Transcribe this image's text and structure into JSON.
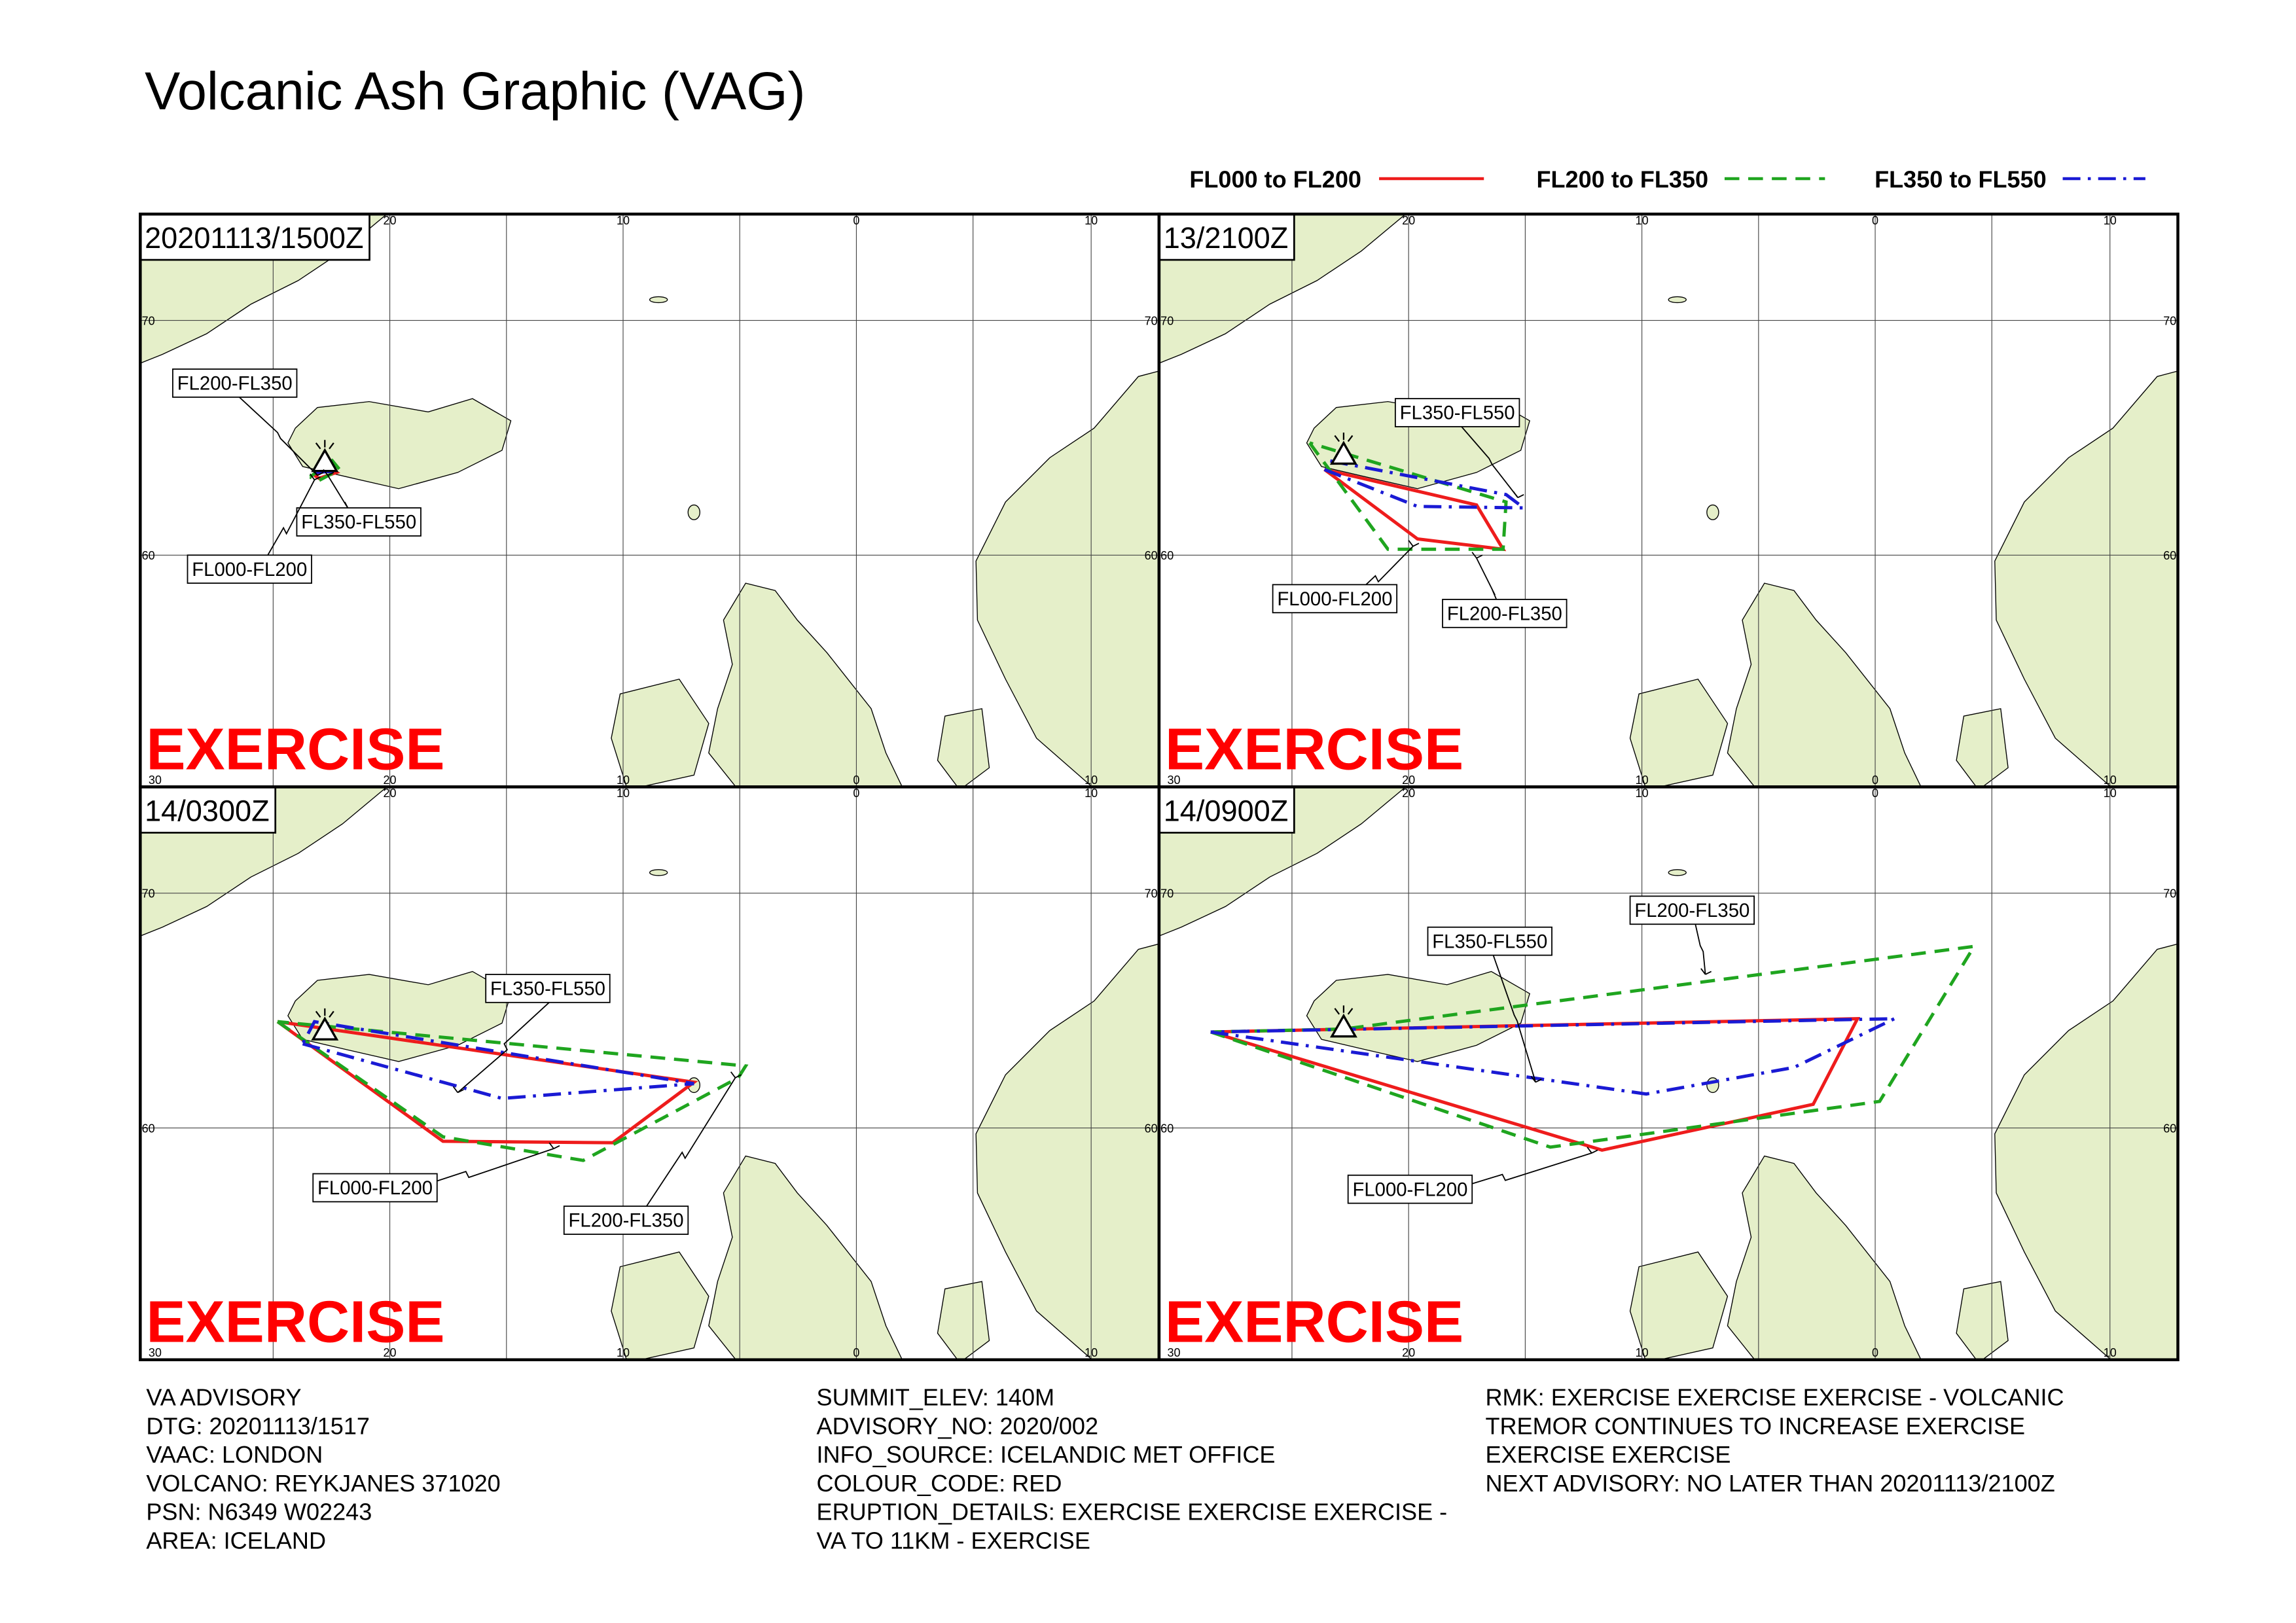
{
  "title": "Volcanic Ash Graphic (VAG)",
  "legend": [
    {
      "label": "FL000 to FL200",
      "color": "#ee1c1c",
      "dash": "solid"
    },
    {
      "label": "FL200 to FL350",
      "color": "#1fa51f",
      "dash": "dashed"
    },
    {
      "label": "FL350 to FL550",
      "color": "#1a1ad4",
      "dash": "dashdot"
    }
  ],
  "graticule": {
    "top": [
      "20",
      "10",
      "0",
      "10"
    ],
    "bottom": [
      "30",
      "20",
      "10",
      "0",
      "10"
    ],
    "side": [
      "70",
      "60"
    ]
  },
  "panels": [
    {
      "time": "20201113/1500Z",
      "watermark": "EXERCISE",
      "labels": [
        "FL200-FL350",
        "FL350-FL550",
        "FL000-FL200"
      ]
    },
    {
      "time": "13/2100Z",
      "watermark": "EXERCISE",
      "labels": [
        "FL350-FL550",
        "FL000-FL200",
        "FL200-FL350"
      ]
    },
    {
      "time": "14/0300Z",
      "watermark": "EXERCISE",
      "labels": [
        "FL350-FL550",
        "FL000-FL200",
        "FL200-FL350"
      ]
    },
    {
      "time": "14/0900Z",
      "watermark": "EXERCISE",
      "labels": [
        "FL200-FL350",
        "FL350-FL550",
        "FL000-FL200"
      ]
    }
  ],
  "advisory": {
    "columns": [
      [
        "VA ADVISORY",
        "DTG: 20201113/1517",
        "VAAC: LONDON",
        "VOLCANO: REYKJANES 371020",
        "PSN: N6349 W02243",
        "AREA: ICELAND"
      ],
      [
        "SUMMIT_ELEV: 140M",
        "ADVISORY_NO: 2020/002",
        "INFO_SOURCE: ICELANDIC MET OFFICE",
        "COLOUR_CODE: RED",
        "ERUPTION_DETAILS: EXERCISE EXERCISE EXERCISE -",
        "VA TO 11KM - EXERCISE"
      ],
      [
        "RMK: EXERCISE EXERCISE EXERCISE - VOLCANIC",
        "TREMOR CONTINUES TO INCREASE EXERCISE",
        "EXERCISE EXERCISE",
        "NEXT ADVISORY: NO LATER THAN 20201113/2100Z"
      ]
    ]
  }
}
